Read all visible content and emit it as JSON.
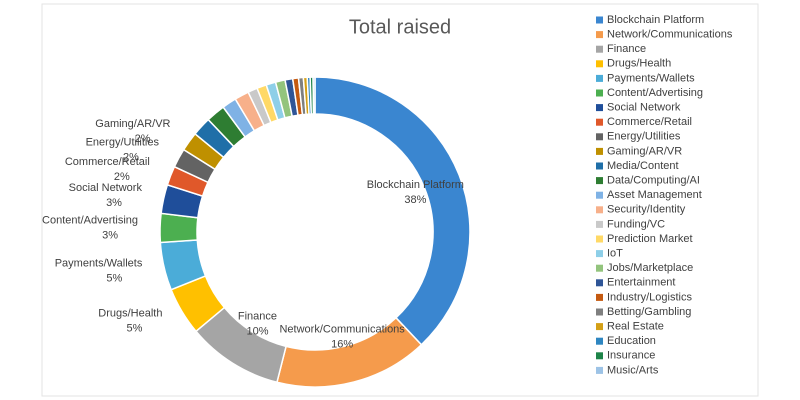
{
  "chart_data": {
    "type": "pie",
    "title": "Total raised",
    "donut": true,
    "categories": [
      "Blockchain Platform",
      "Network/Communications",
      "Finance",
      "Drugs/Health",
      "Payments/Wallets",
      "Content/Advertising",
      "Social Network",
      "Commerce/Retail",
      "Energy/Utilities",
      "Gaming/AR/VR",
      "Media/Content",
      "Data/Computing/AI",
      "Asset Management",
      "Security/Identity",
      "Funding/VC",
      "Prediction Market",
      "IoT",
      "Jobs/Marketplace",
      "Entertainment",
      "Industry/Logistics",
      "Betting/Gambling",
      "Real Estate",
      "Education",
      "Insurance",
      "Music/Arts"
    ],
    "values": [
      38,
      16,
      10,
      5,
      5,
      3,
      3,
      2,
      2,
      2,
      2,
      2,
      1.5,
      1.5,
      1,
      1,
      1,
      1,
      0.8,
      0.6,
      0.5,
      0.4,
      0.3,
      0.3,
      0.2
    ],
    "value_labels": [
      "38%",
      "16%",
      "10%",
      "5%",
      "5%",
      "3%",
      "3%",
      "2%",
      "2%",
      "2%",
      null,
      null,
      null,
      null,
      null,
      null,
      null,
      null,
      null,
      null,
      null,
      null,
      null,
      null,
      null
    ],
    "colors": [
      "#3a86d0",
      "#f59b4c",
      "#a5a5a5",
      "#ffc000",
      "#4bacd8",
      "#4caf50",
      "#1f4e9a",
      "#e0582a",
      "#636363",
      "#bf9000",
      "#1f6fa8",
      "#2e7d32",
      "#7fb2e5",
      "#f7b08a",
      "#c9c9c9",
      "#ffd966",
      "#8ecfe8",
      "#93c47d",
      "#2f5597",
      "#c55a11",
      "#7f7f7f",
      "#d4a017",
      "#2e86c1",
      "#1e8449",
      "#9dc3e6"
    ],
    "legend": "right"
  }
}
